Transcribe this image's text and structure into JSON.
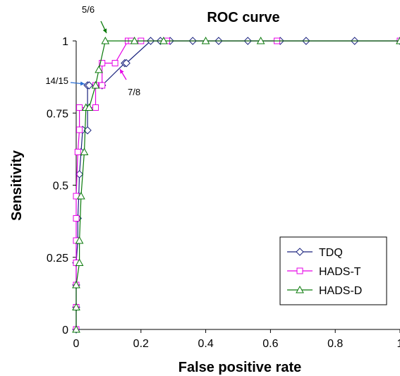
{
  "chart_data": {
    "type": "line",
    "title": "ROC curve",
    "xlabel": "False positive rate",
    "ylabel": "Sensitivity",
    "xlim": [
      0,
      1
    ],
    "ylim": [
      0,
      1
    ],
    "x_ticks": [
      "0",
      "0.2",
      "0.4",
      "0.6",
      "0.8",
      "1"
    ],
    "x_tick_values": [
      0,
      0.2,
      0.4,
      0.6,
      0.8,
      1
    ],
    "y_ticks": [
      "0",
      "0.25",
      "0.5",
      "0.75",
      "1"
    ],
    "y_tick_values": [
      0,
      0.25,
      0.5,
      0.75,
      1
    ],
    "grid": false,
    "legend_position": "bottom-right",
    "series": [
      {
        "name": "TDQ",
        "color": "#1a237e",
        "marker": "diamond",
        "points": [
          [
            0,
            0
          ],
          [
            0,
            0.077
          ],
          [
            0,
            0.154
          ],
          [
            0,
            0.231
          ],
          [
            0.005,
            0.308
          ],
          [
            0.005,
            0.385
          ],
          [
            0.008,
            0.462
          ],
          [
            0.01,
            0.538
          ],
          [
            0.015,
            0.615
          ],
          [
            0.02,
            0.692
          ],
          [
            0.035,
            0.69
          ],
          [
            0.035,
            0.846
          ],
          [
            0.04,
            0.846
          ],
          [
            0.06,
            0.846
          ],
          [
            0.08,
            0.846
          ],
          [
            0.15,
            0.923
          ],
          [
            0.155,
            0.923
          ],
          [
            0.23,
            1
          ],
          [
            0.26,
            1
          ],
          [
            0.29,
            1
          ],
          [
            0.36,
            1
          ],
          [
            0.44,
            1
          ],
          [
            0.53,
            1
          ],
          [
            0.63,
            1
          ],
          [
            0.71,
            1
          ],
          [
            0.86,
            1
          ],
          [
            1,
            1
          ]
        ]
      },
      {
        "name": "HADS-T",
        "color": "#e600e6",
        "marker": "square",
        "points": [
          [
            0,
            0
          ],
          [
            0,
            0.077
          ],
          [
            0,
            0.154
          ],
          [
            0,
            0.231
          ],
          [
            0,
            0.308
          ],
          [
            0,
            0.385
          ],
          [
            0,
            0.462
          ],
          [
            0.005,
            0.615
          ],
          [
            0.01,
            0.692
          ],
          [
            0.01,
            0.769
          ],
          [
            0.06,
            0.769
          ],
          [
            0.06,
            0.846
          ],
          [
            0.08,
            0.846
          ],
          [
            0.08,
            0.923
          ],
          [
            0.12,
            0.923
          ],
          [
            0.16,
            1
          ],
          [
            0.17,
            1
          ],
          [
            0.2,
            1
          ],
          [
            0.28,
            1
          ],
          [
            0.62,
            1
          ],
          [
            1,
            1
          ]
        ]
      },
      {
        "name": "HADS-D",
        "color": "#0a7a0a",
        "marker": "triangle",
        "points": [
          [
            0,
            0
          ],
          [
            0,
            0.077
          ],
          [
            0,
            0.154
          ],
          [
            0.01,
            0.231
          ],
          [
            0.01,
            0.308
          ],
          [
            0.015,
            0.462
          ],
          [
            0.025,
            0.615
          ],
          [
            0.03,
            0.769
          ],
          [
            0.04,
            0.769
          ],
          [
            0.06,
            0.846
          ],
          [
            0.07,
            0.9
          ],
          [
            0.09,
            1
          ],
          [
            0.18,
            1
          ],
          [
            0.27,
            1
          ],
          [
            0.4,
            1
          ],
          [
            0.57,
            1
          ],
          [
            1,
            1
          ]
        ]
      }
    ],
    "annotations": [
      {
        "text": "5/6",
        "color": "#0a7a0a",
        "at": [
          0.09,
          1
        ]
      },
      {
        "text": "14/15",
        "color": "#2a6fd6",
        "at": [
          0.035,
          0.846
        ]
      },
      {
        "text": "7/8",
        "color": "#e600e6",
        "at": [
          0.12,
          0.923
        ]
      }
    ]
  }
}
